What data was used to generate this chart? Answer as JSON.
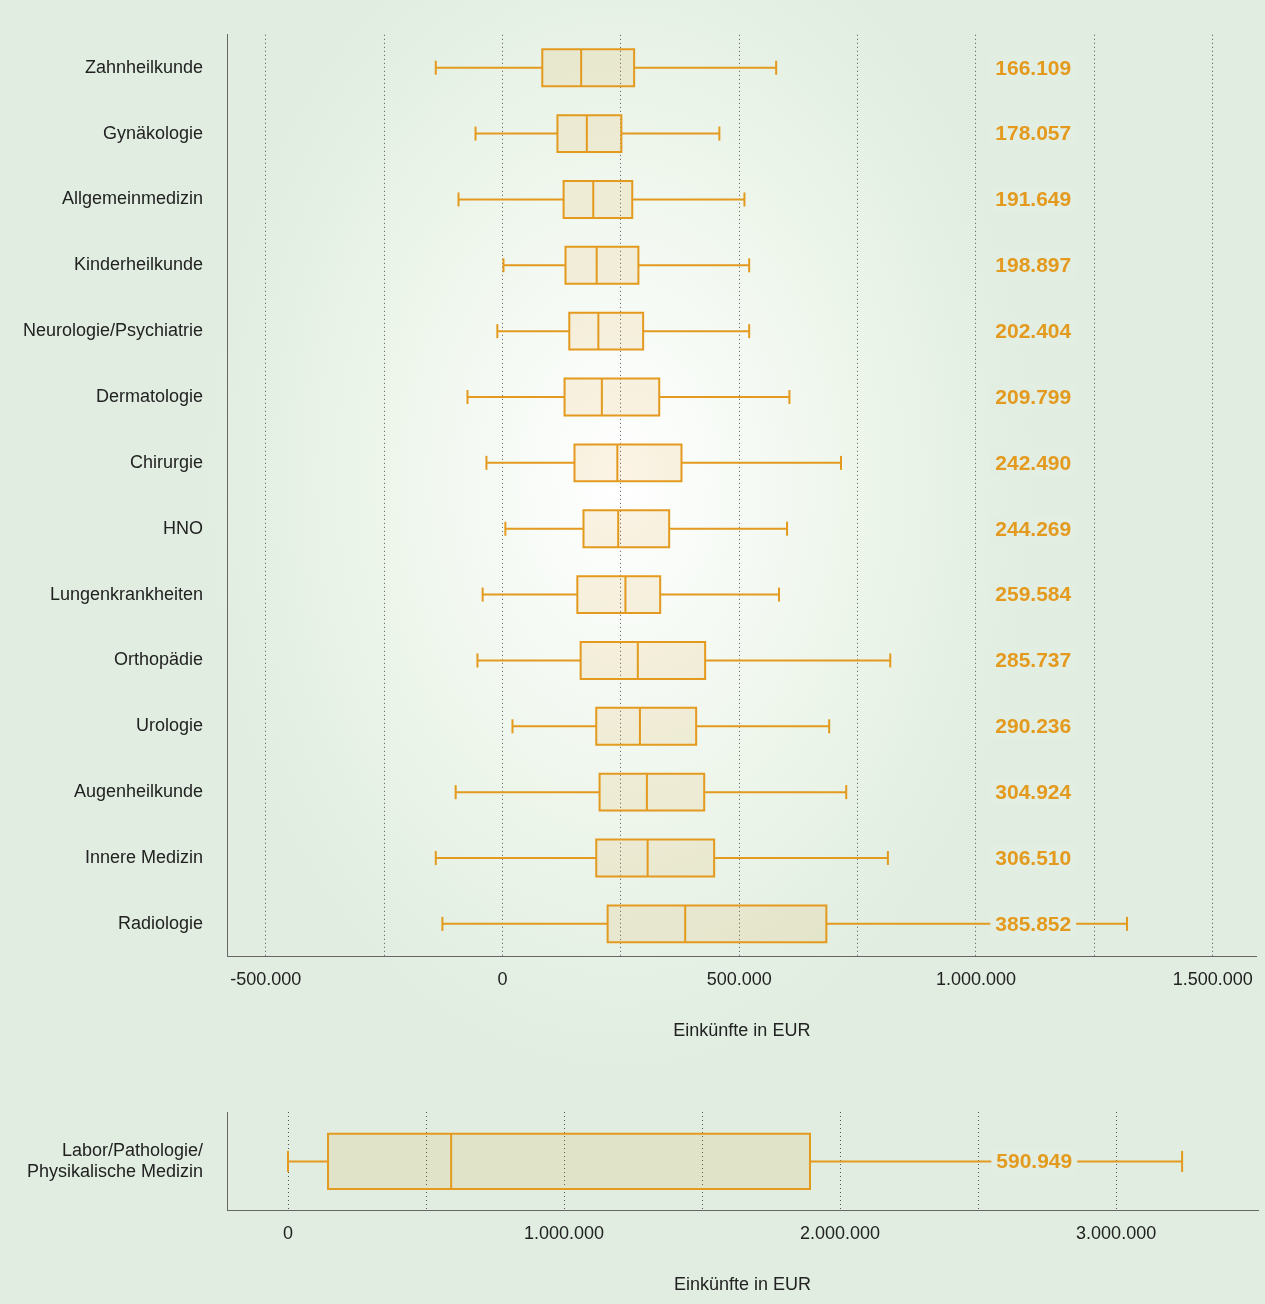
{
  "chart_data": [
    {
      "type": "box",
      "orientation": "horizontal",
      "color": "#e39a1e",
      "grid": "x",
      "xlabel": "Einkünfte in EUR",
      "categories": [
        "Zahnheilkunde",
        "Gynäkologie",
        "Allgemeinmedizin",
        "Kinderheilkunde",
        "Neurologie/Psychiatrie",
        "Dermatologie",
        "Chirurgie",
        "HNO",
        "Lungenkrankheiten",
        "Orthopädie",
        "Urologie",
        "Augenheilkunde",
        "Innere Medizin",
        "Radiologie"
      ],
      "boxes": [
        {
          "low": -141000,
          "q1": 84000,
          "median": 166109,
          "q3": 278000,
          "high": 578000
        },
        {
          "low": -57000,
          "q1": 116000,
          "median": 178057,
          "q3": 251000,
          "high": 458000
        },
        {
          "low": -93000,
          "q1": 129000,
          "median": 191649,
          "q3": 274000,
          "high": 511000
        },
        {
          "low": 2000,
          "q1": 133000,
          "median": 198897,
          "q3": 287000,
          "high": 521000
        },
        {
          "low": -11000,
          "q1": 141000,
          "median": 202404,
          "q3": 297000,
          "high": 521000
        },
        {
          "low": -74000,
          "q1": 131000,
          "median": 209799,
          "q3": 331000,
          "high": 606000
        },
        {
          "low": -34000,
          "q1": 152000,
          "median": 242490,
          "q3": 378000,
          "high": 715000
        },
        {
          "low": 6000,
          "q1": 171000,
          "median": 244269,
          "q3": 352000,
          "high": 601000
        },
        {
          "low": -42000,
          "q1": 158000,
          "median": 259584,
          "q3": 333000,
          "high": 584000
        },
        {
          "low": -53000,
          "q1": 165000,
          "median": 285737,
          "q3": 428000,
          "high": 819000
        },
        {
          "low": 21000,
          "q1": 198000,
          "median": 290236,
          "q3": 409000,
          "high": 690000
        },
        {
          "low": -99000,
          "q1": 205000,
          "median": 304924,
          "q3": 426000,
          "high": 726000
        },
        {
          "low": -141000,
          "q1": 198000,
          "median": 306510,
          "q3": 447000,
          "high": 814000
        },
        {
          "low": -127000,
          "q1": 222000,
          "median": 385852,
          "q3": 684000,
          "high": 1319000
        }
      ],
      "value_labels": [
        "166.109",
        "178.057",
        "191.649",
        "198.897",
        "202.404",
        "209.799",
        "242.490",
        "244.269",
        "259.584",
        "285.737",
        "290.236",
        "304.924",
        "306.510",
        "385.852"
      ],
      "xlim": [
        -582000,
        1593000
      ],
      "xticks": [
        {
          "value": -500000,
          "label": "-500.000"
        },
        {
          "value": -250000,
          "label": null
        },
        {
          "value": 0,
          "label": "0"
        },
        {
          "value": 250000,
          "label": null
        },
        {
          "value": 500000,
          "label": "500.000"
        },
        {
          "value": 750000,
          "label": null
        },
        {
          "value": 1000000,
          "label": "1.000.000"
        },
        {
          "value": 1250000,
          "label": null
        },
        {
          "value": 1500000,
          "label": "1.500.000"
        }
      ]
    },
    {
      "type": "box",
      "orientation": "horizontal",
      "color": "#e39a1e",
      "grid": "x",
      "xlabel": "Einkünfte in EUR",
      "categories": [
        "Labor/Pathologie/ Physikalische Medizin"
      ],
      "boxes": [
        {
          "low": 0,
          "q1": 145000,
          "median": 590949,
          "q3": 1891000,
          "high": 3239000
        }
      ],
      "value_labels": [
        "590.949"
      ],
      "xlim": [
        -221000,
        3514000
      ],
      "xticks": [
        {
          "value": 0,
          "label": "0"
        },
        {
          "value": 500000,
          "label": null
        },
        {
          "value": 1000000,
          "label": "1.000.000"
        },
        {
          "value": 1500000,
          "label": null
        },
        {
          "value": 2000000,
          "label": "2.000.000"
        },
        {
          "value": 2500000,
          "label": null
        },
        {
          "value": 3000000,
          "label": "3.000.000"
        }
      ]
    }
  ]
}
